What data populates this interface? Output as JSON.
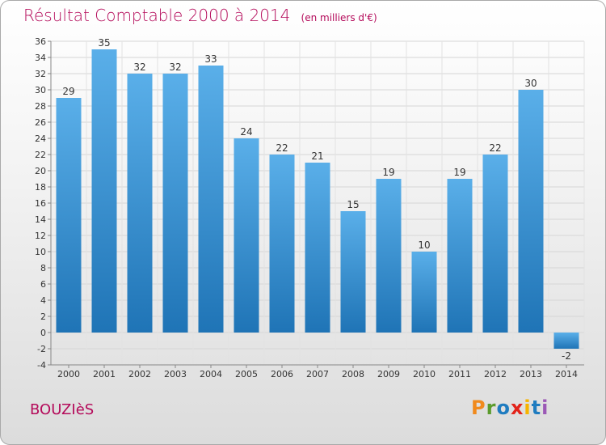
{
  "title": "Résultat Comptable 2000 à 2014",
  "subtitle": "(en milliers d'€)",
  "commune": "BOUZIèS",
  "logo": {
    "letters": [
      "P",
      "r",
      "o",
      "x",
      "i",
      "t",
      "i"
    ],
    "colors": [
      "#f08a1d",
      "#5b9b2c",
      "#1f7cc0",
      "#e2231a",
      "#f6b400",
      "#1f7cc0",
      "#9b59b6"
    ]
  },
  "chart_data": {
    "type": "bar",
    "categories": [
      "2000",
      "2001",
      "2002",
      "2003",
      "2004",
      "2005",
      "2006",
      "2007",
      "2008",
      "2009",
      "2010",
      "2011",
      "2012",
      "2013",
      "2014"
    ],
    "values": [
      29,
      35,
      32,
      32,
      33,
      24,
      22,
      21,
      15,
      19,
      10,
      19,
      22,
      30,
      -2
    ],
    "data_labels": [
      "29",
      "35",
      "32",
      "32",
      "33",
      "24",
      "22",
      "21",
      "15",
      "19",
      "10",
      "19",
      "22",
      "30",
      "-2"
    ],
    "ylim": [
      -4,
      36
    ],
    "yticks": [
      "-4",
      "-2",
      "0",
      "2",
      "4",
      "6",
      "8",
      "10",
      "12",
      "14",
      "16",
      "18",
      "20",
      "22",
      "24",
      "26",
      "28",
      "30",
      "32",
      "34",
      "36"
    ],
    "grid": true,
    "bar_color_top": "#5aafe9",
    "bar_color_bottom": "#1f74b6"
  }
}
